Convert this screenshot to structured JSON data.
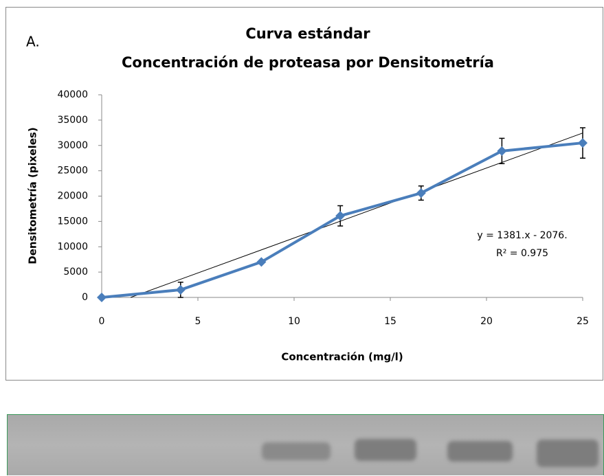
{
  "chart_data": {
    "type": "line",
    "label": "A.",
    "title": "Curva estándar",
    "subtitle": "Concentración de proteasa por Densitometría",
    "x_label": "Concentración (mg/l)",
    "y_label": "Densitometría (pixeles)",
    "x": [
      0,
      4.1,
      8.3,
      12.4,
      16.6,
      20.8,
      25
    ],
    "series": [
      {
        "color": "#4a7ebb",
        "values": [
          0,
          1500,
          7000,
          16100,
          20600,
          28900,
          30500
        ],
        "errors": [
          null,
          1500,
          null,
          2000,
          1400,
          2500,
          3000
        ]
      }
    ],
    "trendline": {
      "slope": 1381,
      "intercept": -2076,
      "color": "#000000",
      "equation": "y = 1381.x - 2076.",
      "r2": "R² = 0.975"
    },
    "xlim": [
      0,
      25
    ],
    "xticks": [
      0,
      5,
      10,
      15,
      20,
      25
    ],
    "ylim": [
      0,
      40000
    ],
    "yticks": [
      0,
      5000,
      10000,
      15000,
      20000,
      25000,
      30000,
      35000,
      40000
    ],
    "grid": false
  }
}
